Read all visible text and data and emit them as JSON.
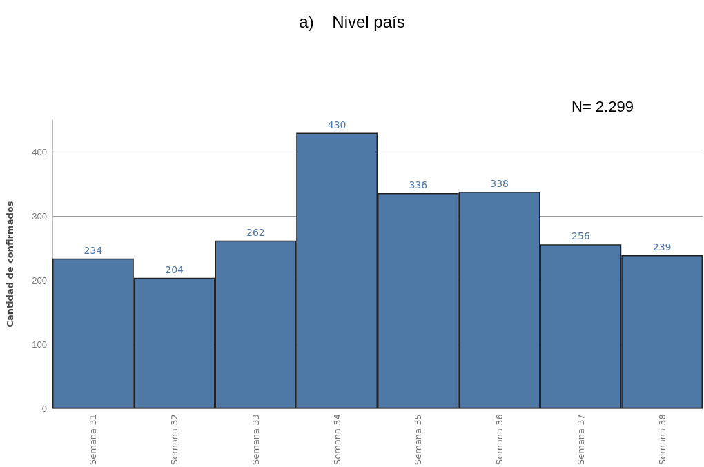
{
  "chart_data": {
    "type": "bar",
    "title": "a)    Nivel país",
    "ylabel": "Cantidad de confirmados",
    "annotations": [
      "N= 2.299"
    ],
    "categories": [
      "Semana 31",
      "Semana 32",
      "Semana 33",
      "Semana 34",
      "Semana 35",
      "Semana 36",
      "Semana 37",
      "Semana 38"
    ],
    "values": [
      234,
      204,
      262,
      430,
      336,
      338,
      256,
      239
    ],
    "color": "#4e79a7",
    "ylim": [
      0,
      450
    ],
    "yticks": [
      0,
      100,
      200,
      300,
      400
    ],
    "grid": "y",
    "data_labels": true
  }
}
